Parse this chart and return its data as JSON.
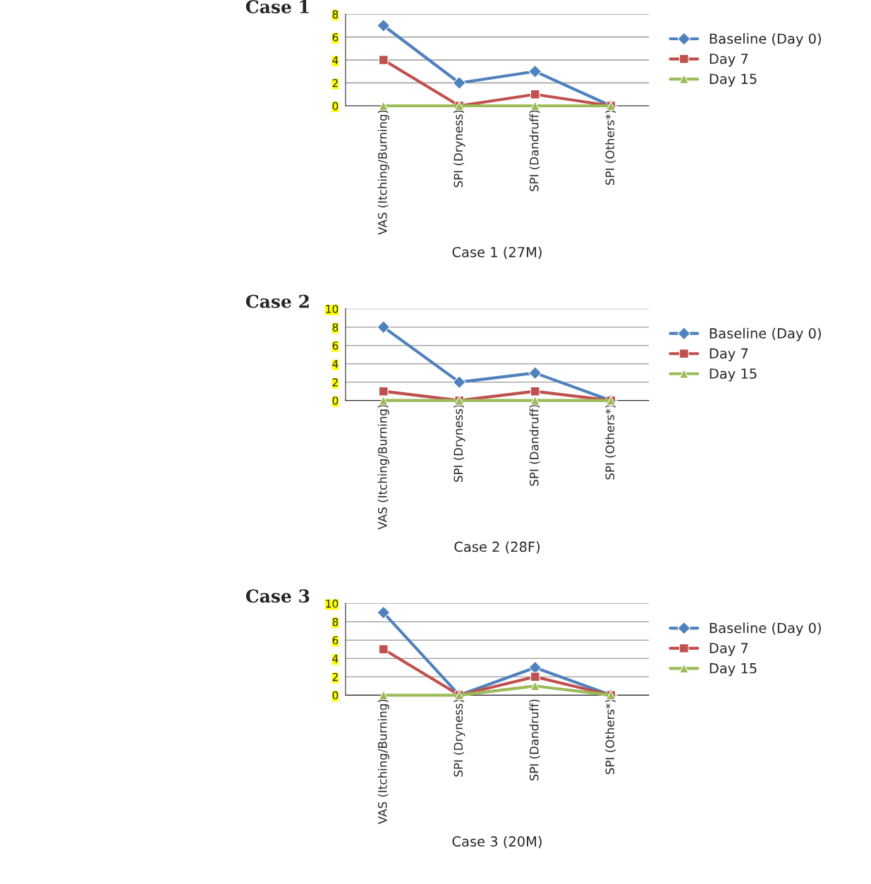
{
  "chart_data": [
    {
      "type": "line",
      "title": "Case 1",
      "xlabel": "Case 1 (27M)",
      "categories": [
        "VAS (Itching/Burning)",
        "SPI (Dryness)",
        "SPI (Dandruff)",
        "SPI (Others*)"
      ],
      "ylim": [
        0,
        8
      ],
      "yticks": [
        0,
        2,
        4,
        6,
        8
      ],
      "grid": "y",
      "legend": "right",
      "series": [
        {
          "name": "Baseline (Day 0)",
          "color": "#4f81bd",
          "marker": "diamond",
          "values": [
            7,
            2,
            3,
            0
          ]
        },
        {
          "name": "Day 7",
          "color": "#c0504d",
          "marker": "square",
          "values": [
            4,
            0,
            1,
            0
          ]
        },
        {
          "name": "Day 15",
          "color": "#9bbb59",
          "marker": "triangle",
          "values": [
            0,
            0,
            0,
            0
          ]
        }
      ]
    },
    {
      "type": "line",
      "title": "Case 2",
      "xlabel": "Case 2 (28F)",
      "categories": [
        "VAS (Itching/Burning)",
        "SPI (Dryness)",
        "SPI (Dandruff)",
        "SPI (Others*)"
      ],
      "ylim": [
        0,
        10
      ],
      "yticks": [
        0,
        2,
        4,
        6,
        8,
        10
      ],
      "grid": "y",
      "legend": "right",
      "series": [
        {
          "name": "Baseline (Day 0)",
          "color": "#4f81bd",
          "marker": "diamond",
          "values": [
            8,
            2,
            3,
            0
          ]
        },
        {
          "name": "Day 7",
          "color": "#c0504d",
          "marker": "square",
          "values": [
            1,
            0,
            1,
            0
          ]
        },
        {
          "name": "Day 15",
          "color": "#9bbb59",
          "marker": "triangle",
          "values": [
            0,
            0,
            0,
            0
          ]
        }
      ]
    },
    {
      "type": "line",
      "title": "Case 3",
      "xlabel": "Case 3 (20M)",
      "categories": [
        "VAS (Itching/Burning)",
        "SPI (Dryness)",
        "SPI (Dandruff)",
        "SPI (Others*)"
      ],
      "ylim": [
        0,
        10
      ],
      "yticks": [
        0,
        2,
        4,
        6,
        8,
        10
      ],
      "grid": "y",
      "legend": "right",
      "series": [
        {
          "name": "Baseline (Day 0)",
          "color": "#4f81bd",
          "marker": "diamond",
          "values": [
            9,
            0,
            3,
            0
          ]
        },
        {
          "name": "Day 7",
          "color": "#c0504d",
          "marker": "square",
          "values": [
            5,
            0,
            2,
            0
          ]
        },
        {
          "name": "Day 15",
          "color": "#9bbb59",
          "marker": "triangle",
          "values": [
            0,
            0,
            1,
            0
          ]
        }
      ]
    }
  ]
}
